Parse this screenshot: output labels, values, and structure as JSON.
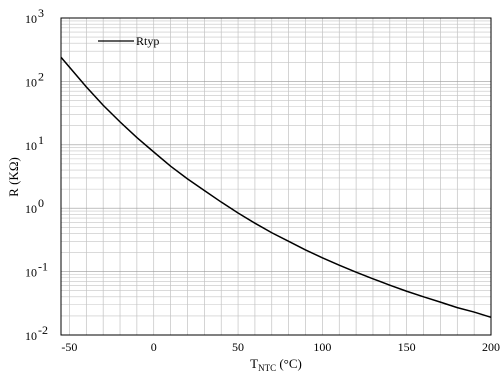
{
  "chart_data": {
    "type": "line",
    "title": "",
    "xlabel": {
      "main": "T",
      "sub": "NTC",
      "unit": " (°C)"
    },
    "ylabel": "R (KΩ)",
    "xlim": [
      -55,
      200
    ],
    "ylim": [
      0.01,
      1000
    ],
    "yscale": "log",
    "grid": true,
    "legend_position": "top-left",
    "x_ticks": [
      {
        "value": -50,
        "label": "-50"
      },
      {
        "value": 0,
        "label": "0"
      },
      {
        "value": 50,
        "label": "50"
      },
      {
        "value": 100,
        "label": "100"
      },
      {
        "value": 150,
        "label": "150"
      },
      {
        "value": 200,
        "label": "200"
      }
    ],
    "y_ticks": [
      {
        "value": 0.01,
        "base": "10",
        "exp": "-2"
      },
      {
        "value": 0.1,
        "base": "10",
        "exp": "-1"
      },
      {
        "value": 1,
        "base": "10",
        "exp": "0"
      },
      {
        "value": 10,
        "base": "10",
        "exp": "1"
      },
      {
        "value": 100,
        "base": "10",
        "exp": "2"
      },
      {
        "value": 1000,
        "base": "10",
        "exp": "3"
      }
    ],
    "series": [
      {
        "name": "Rtyp",
        "color": "#000000",
        "x": [
          -55,
          -50,
          -40,
          -30,
          -20,
          -10,
          0,
          10,
          20,
          30,
          40,
          50,
          60,
          70,
          80,
          90,
          100,
          110,
          120,
          130,
          140,
          150,
          160,
          170,
          180,
          190,
          200
        ],
        "y": [
          240,
          168,
          82,
          42,
          23,
          13,
          7.7,
          4.6,
          2.9,
          1.9,
          1.25,
          0.84,
          0.58,
          0.41,
          0.3,
          0.22,
          0.165,
          0.126,
          0.098,
          0.077,
          0.061,
          0.049,
          0.04,
          0.033,
          0.027,
          0.023,
          0.019
        ]
      }
    ]
  }
}
